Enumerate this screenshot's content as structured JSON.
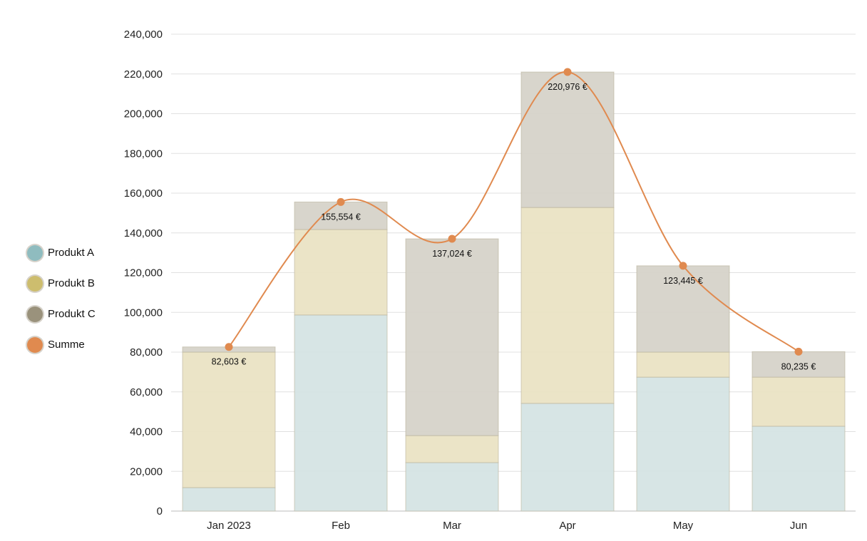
{
  "chart_data": {
    "type": "bar",
    "stacked": true,
    "categories": [
      "Jan 2023",
      "Feb",
      "Mar",
      "Apr",
      "May",
      "Jun"
    ],
    "series": [
      {
        "name": "Produkt A",
        "type": "bar",
        "color": "#d4e3e3",
        "legend_color": "#8fbcbf",
        "values": [
          11800,
          98700,
          24400,
          54200,
          67400,
          42700
        ]
      },
      {
        "name": "Produkt B",
        "type": "bar",
        "color": "#e9e2c2",
        "legend_color": "#cdbd6e",
        "values": [
          68200,
          43000,
          13600,
          98600,
          12600,
          24700
        ]
      },
      {
        "name": "Produkt C",
        "type": "bar",
        "color": "#d5d1c8",
        "legend_color": "#9a927c",
        "values": [
          2603,
          13854,
          99024,
          68176,
          43445,
          12835
        ]
      },
      {
        "name": "Summe",
        "type": "line",
        "color": "#e08a4f",
        "values": [
          82603,
          155554,
          137024,
          220976,
          123445,
          80235
        ],
        "data_labels": [
          "82,603 €",
          "155,554 €",
          "137,024 €",
          "220,976 €",
          "123,445 €",
          "80,235 €"
        ]
      }
    ],
    "y_ticks": [
      "0",
      "20,000",
      "40,000",
      "60,000",
      "80,000",
      "100,000",
      "120,000",
      "140,000",
      "160,000",
      "180,000",
      "200,000",
      "220,000",
      "240,000"
    ],
    "ylim": [
      0,
      240000
    ],
    "grid": true,
    "legend_position": "left",
    "title": "",
    "xlabel": "",
    "ylabel": ""
  }
}
